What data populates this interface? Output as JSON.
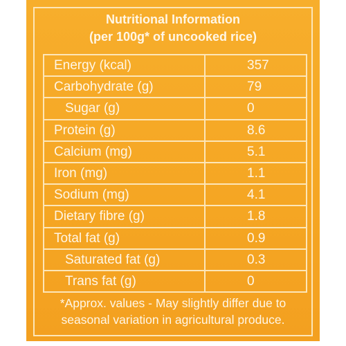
{
  "header": {
    "title": "Nutritional Information",
    "subtitle": "(per 100g* of uncooked rice)"
  },
  "table": {
    "rows": [
      {
        "label": "Energy (kcal)",
        "value": 357
      },
      {
        "label": "Carbohydrate (g)",
        "value": 79,
        "sub": [
          {
            "label": "Sugar (g)",
            "value": 0
          }
        ]
      },
      {
        "label": "Protein (g)",
        "value": 8.6
      },
      {
        "label": "Calcium (mg)",
        "value": 5.1
      },
      {
        "label": "Iron (mg)",
        "value": 1.1
      },
      {
        "label": "Sodium (mg)",
        "value": 4.1
      },
      {
        "label": "Dietary fibre (g)",
        "value": 1.8
      },
      {
        "label": "Total fat (g)",
        "value": 0.9,
        "sub": [
          {
            "label": "Saturated fat (g)",
            "value": 0.3
          },
          {
            "label": "Trans fat (g)",
            "value": 0
          }
        ]
      }
    ]
  },
  "footer": {
    "lines": [
      "*Approx. values - May slightly differ due to",
      "seasonal variation in agricultural produce."
    ]
  }
}
